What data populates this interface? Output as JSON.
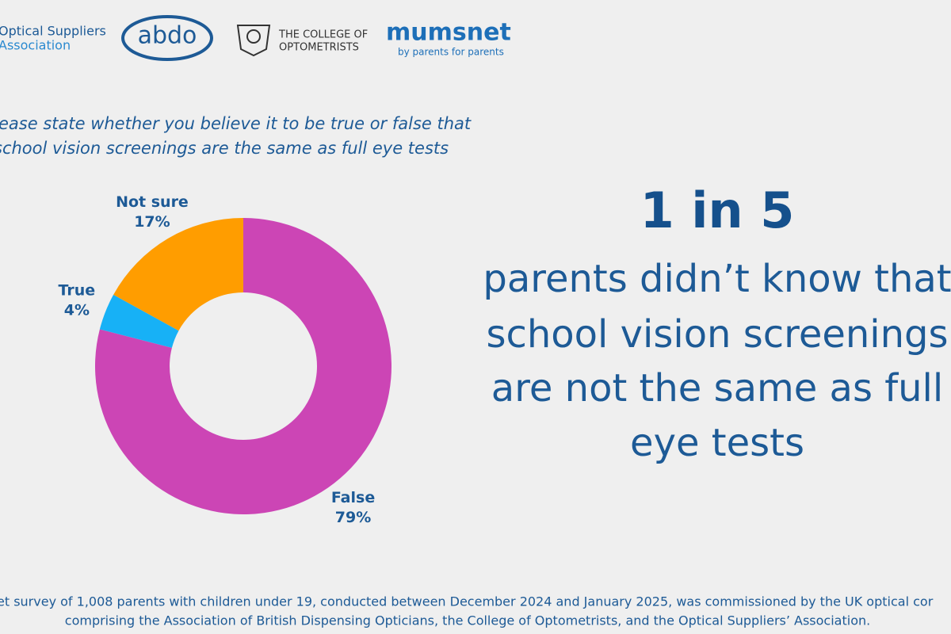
{
  "logos": {
    "osa": [
      "Optical Suppliers",
      "Association"
    ],
    "abdo": "abdo",
    "college": [
      "THE COLLEGE OF",
      "OPTOMETRISTS"
    ],
    "mumsnet": "mumsnet",
    "mumsnet_tagline": "by parents for parents"
  },
  "chart_data": {
    "type": "donut",
    "title": [
      "ease state whether you believe it to be true or false that",
      "school vision screenings are the same as full eye tests"
    ],
    "categories": [
      "False",
      "True",
      "Not sure"
    ],
    "values": [
      79,
      4,
      17
    ],
    "value_labels": [
      "79%",
      "4%",
      "17%"
    ],
    "colors": [
      "#cc45b5",
      "#17b1f6",
      "#ff9d00"
    ]
  },
  "headline": "1 in 5",
  "statement": [
    "parents didn’t know that",
    "school vision screenings",
    "are not the same as full",
    "eye tests"
  ],
  "footnote": [
    "et survey of 1,008 parents with children under 19, conducted between December 2024 and January 2025, was commissioned by the UK optical cor",
    "comprising the Association of British Dispensing Opticians, the College of Optometrists, and the Optical Suppliers’ Association."
  ]
}
